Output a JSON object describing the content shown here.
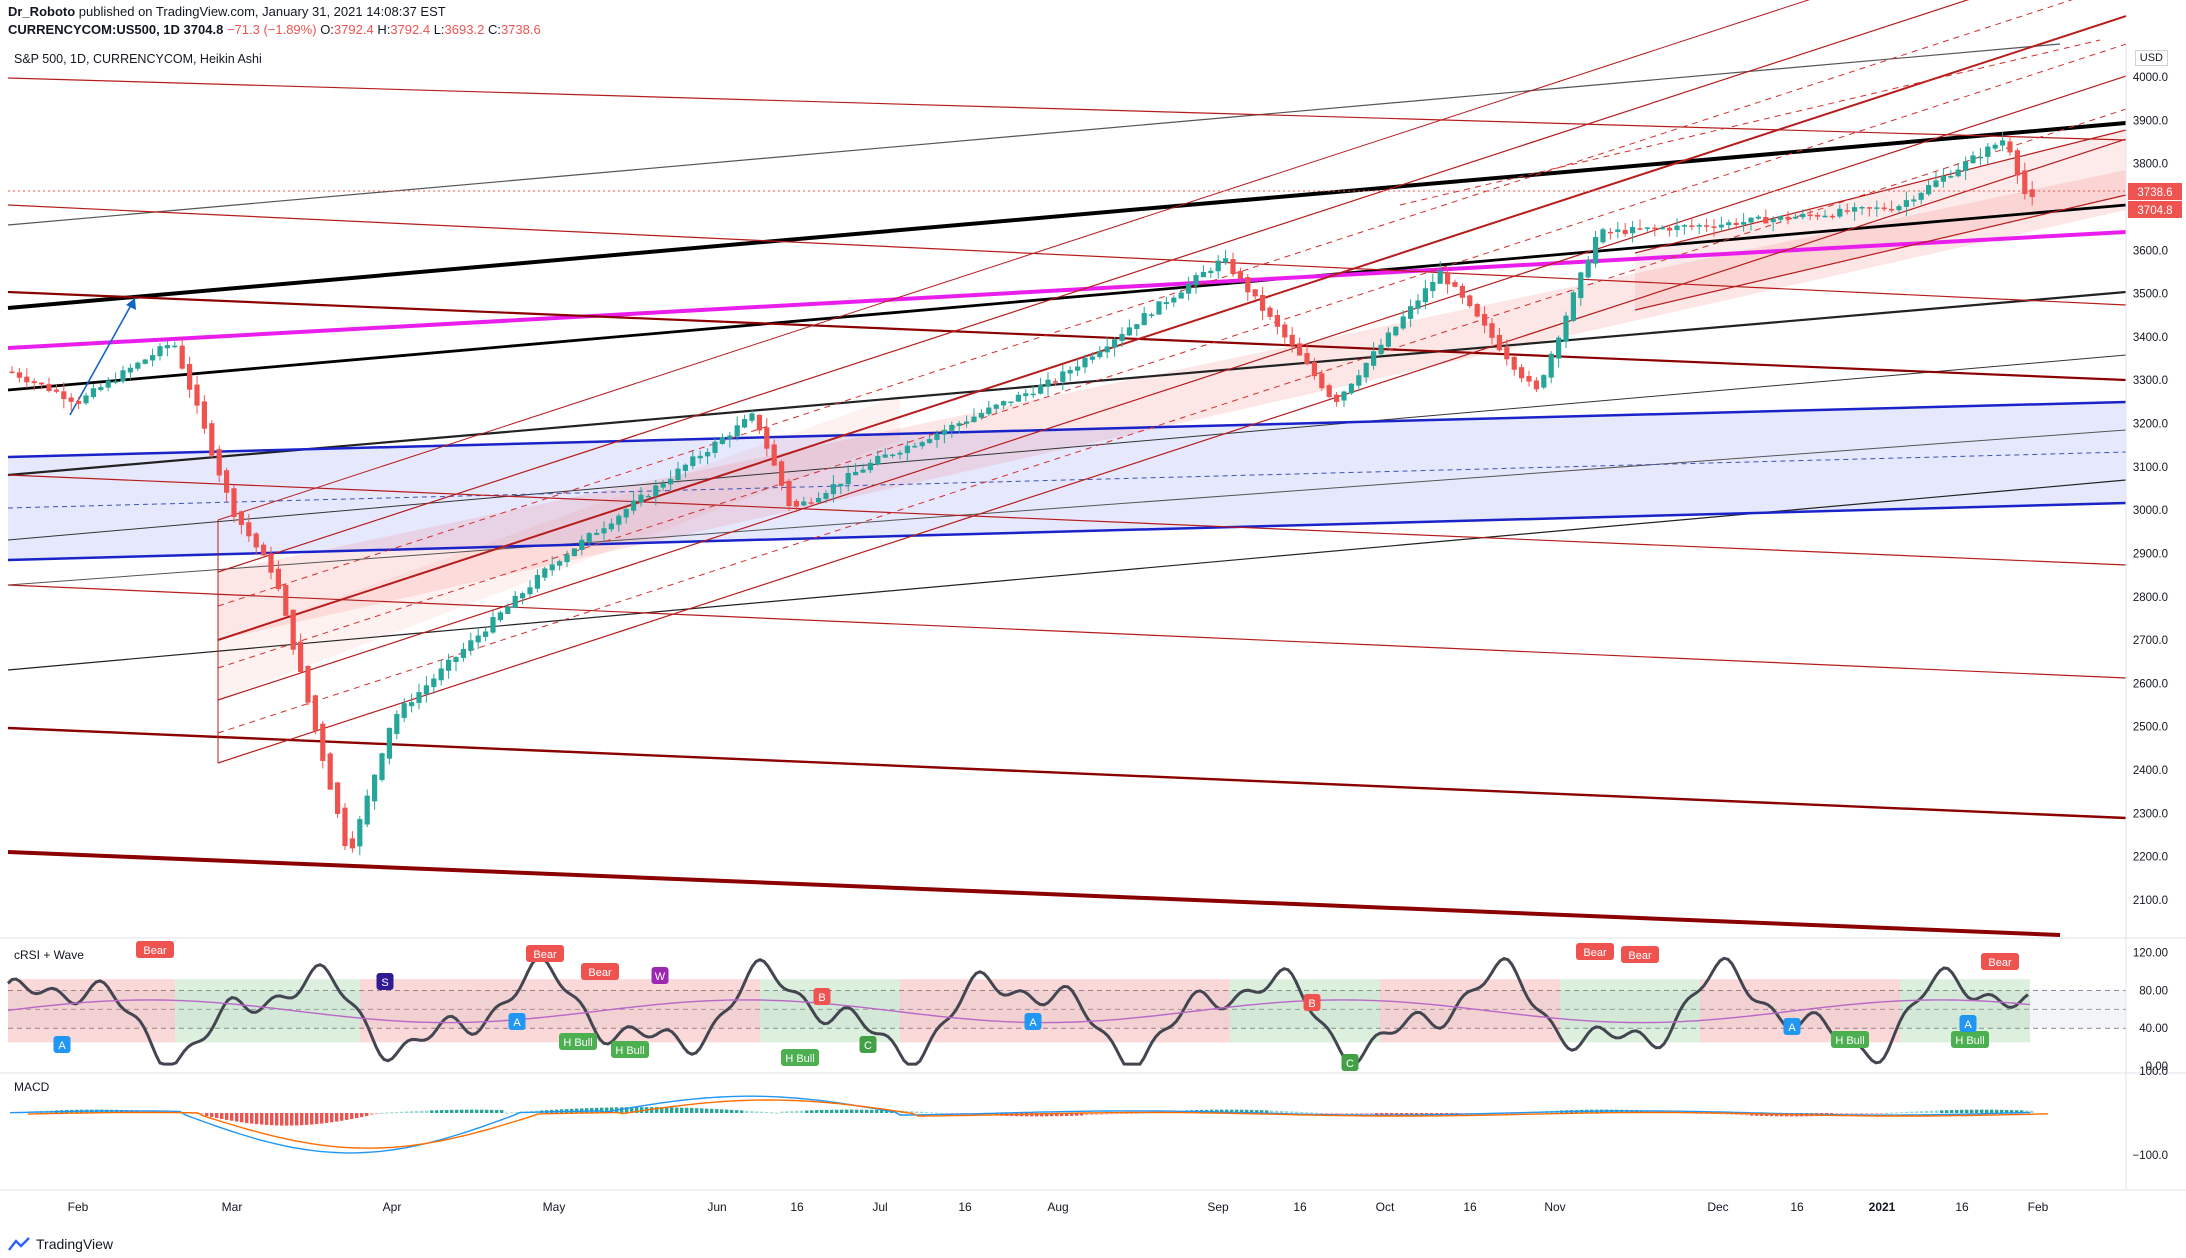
{
  "header": {
    "author": "Dr_Roboto",
    "published_text": "published on TradingView.com, January 31, 2021 14:08:37 EST",
    "symbol": "CURRENCYCOM:US500, 1D",
    "last": "3704.8",
    "change": "−71.3 (−1.89%)",
    "o_label": "O:",
    "o_value": "3792.4",
    "h_label": "H:",
    "h_value": "3792.4",
    "l_label": "L:",
    "l_value": "3693.2",
    "c_label": "C:",
    "c_value": "3738.6"
  },
  "chart_title": "S&P 500, 1D, CURRENCYCOM, Heikin Ashi",
  "price_axis": {
    "unit": "USD",
    "ticks": [
      "4000.0",
      "3900.0",
      "3800.0",
      "3600.0",
      "3500.0",
      "3400.0",
      "3300.0",
      "3200.0",
      "3100.0",
      "3000.0",
      "2900.0",
      "2800.0",
      "2700.0",
      "2600.0",
      "2500.0",
      "2400.0",
      "2300.0",
      "2200.0",
      "2100.0"
    ],
    "badge_top": "3738.6",
    "badge_bottom": "3704.8"
  },
  "crsi_panel": {
    "label": "cRSI + Wave",
    "ticks": [
      "120.00",
      "80.00",
      "40.00",
      "0.00"
    ],
    "signals": [
      {
        "text": "Bear",
        "kind": "bear"
      },
      {
        "text": "Bear",
        "kind": "bear"
      },
      {
        "text": "Bear",
        "kind": "bear"
      },
      {
        "text": "Bear",
        "kind": "bear"
      },
      {
        "text": "Bear",
        "kind": "bear"
      },
      {
        "text": "Bear",
        "kind": "bear"
      },
      {
        "text": "H Bull",
        "kind": "bull"
      },
      {
        "text": "H Bull",
        "kind": "bull"
      },
      {
        "text": "H Bull",
        "kind": "bull"
      },
      {
        "text": "H Bull",
        "kind": "bull"
      },
      {
        "text": "H Bull",
        "kind": "bull"
      },
      {
        "text": "A",
        "kind": "a"
      },
      {
        "text": "A",
        "kind": "a"
      },
      {
        "text": "A",
        "kind": "a"
      },
      {
        "text": "A",
        "kind": "a"
      },
      {
        "text": "A",
        "kind": "a"
      },
      {
        "text": "B",
        "kind": "b"
      },
      {
        "text": "B",
        "kind": "b"
      },
      {
        "text": "C",
        "kind": "c"
      },
      {
        "text": "C",
        "kind": "c"
      },
      {
        "text": "S",
        "kind": "s"
      },
      {
        "text": "W",
        "kind": "w"
      }
    ]
  },
  "macd_panel": {
    "label": "MACD",
    "ticks": [
      "100.0",
      "−100.0"
    ]
  },
  "time_axis": [
    "Feb",
    "Mar",
    "Apr",
    "May",
    "Jun",
    "16",
    "Jul",
    "16",
    "Aug",
    "Sep",
    "16",
    "Oct",
    "16",
    "Nov",
    "Dec",
    "16",
    "2021",
    "16",
    "Feb"
  ],
  "footer": {
    "brand": "TradingView"
  },
  "colors": {
    "up": "#26a69a",
    "down": "#ef5350",
    "channel_red": "#b71c1c",
    "magenta": "#e91eec",
    "blue": "#1a23c8",
    "crsi_line": "#434651",
    "ma_line": "#ba68c8"
  },
  "chart_data": {
    "type": "candlestick",
    "title": "S&P 500, 1D, CURRENCYCOM, Heikin Ashi",
    "ylim": [
      2050,
      4100
    ],
    "last_price": 3704.8,
    "open": 3792.4,
    "high": 3792.4,
    "low": 3693.2,
    "close": 3738.6,
    "approx_path": [
      [
        "Jan 20",
        3320
      ],
      [
        "Feb 1",
        3250
      ],
      [
        "Feb 19",
        3390
      ],
      [
        "Mar 1",
        3000
      ],
      [
        "Mar 9",
        2850
      ],
      [
        "Mar 23",
        2200
      ],
      [
        "Apr 1",
        2520
      ],
      [
        "May 1",
        2880
      ],
      [
        "Jun 8",
        3220
      ],
      [
        "Jun 15",
        3000
      ],
      [
        "Jul 1",
        3120
      ],
      [
        "Aug 1",
        3300
      ],
      [
        "Sep 2",
        3580
      ],
      [
        "Sep 23",
        3250
      ],
      [
        "Oct 12",
        3550
      ],
      [
        "Oct 30",
        3270
      ],
      [
        "Nov 9",
        3640
      ],
      [
        "Dec 1",
        3660
      ],
      [
        "Jan 4",
        3700
      ],
      [
        "Jan 25",
        3860
      ],
      [
        "Jan 29",
        3715
      ]
    ]
  }
}
